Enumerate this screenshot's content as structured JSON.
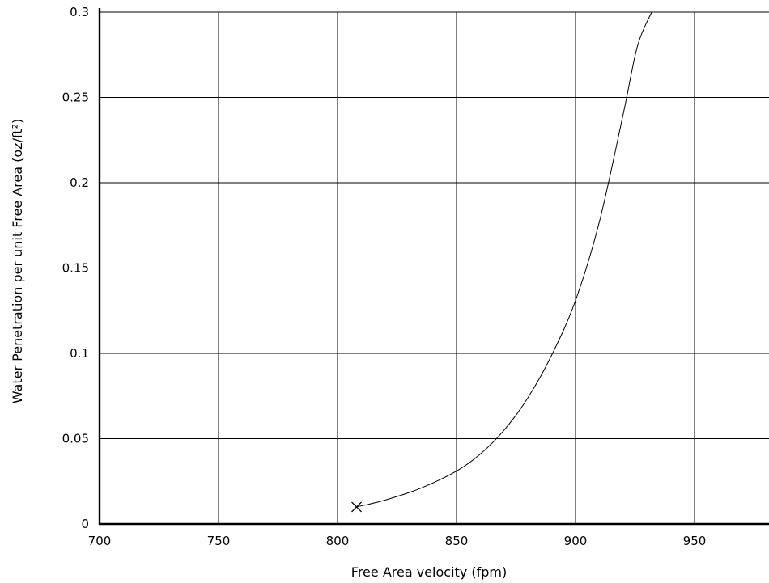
{
  "chart_data": {
    "type": "line",
    "title": "",
    "xlabel": "Free Area velocity (fpm)",
    "ylabel": "Water Penetration per unit Free Area (oz/ft²)",
    "xlim": [
      700,
      980
    ],
    "ylim": [
      0,
      0.3
    ],
    "x_ticks": [
      700,
      750,
      800,
      850,
      900,
      950
    ],
    "x_tick_labels": [
      "700",
      "750",
      "800",
      "850",
      "900",
      "950"
    ],
    "y_ticks": [
      0,
      0.05,
      0.1,
      0.15,
      0.2,
      0.25,
      0.3
    ],
    "y_tick_labels": [
      "0",
      "0.05",
      "0.1",
      "0.15",
      "0.2",
      "0.25",
      "0.3"
    ],
    "grid": true,
    "series": [
      {
        "x": [
          808,
          820,
          835,
          850,
          860,
          870,
          880,
          890,
          900,
          910,
          920,
          926,
          932
        ],
        "y": [
          0.01,
          0.014,
          0.021,
          0.031,
          0.041,
          0.055,
          0.074,
          0.099,
          0.131,
          0.177,
          0.24,
          0.28,
          0.3
        ],
        "marker_point": {
          "x": 808,
          "y": 0.01,
          "symbol": "x"
        }
      }
    ]
  }
}
